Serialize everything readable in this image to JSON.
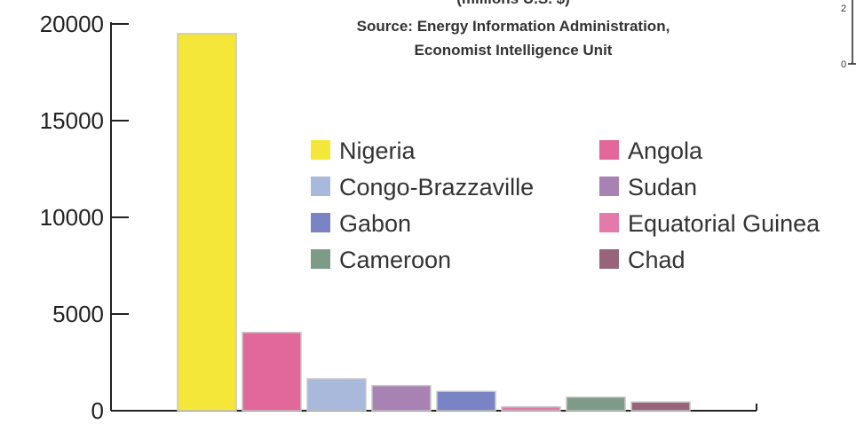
{
  "chart_data": {
    "type": "bar",
    "title_fragment": "(millions U.S. $)",
    "source_lines": [
      "Source: Energy Information Administration,",
      "Economist Intelligence Unit"
    ],
    "categories": [
      "Nigeria",
      "Angola",
      "Congo-Brazzaville",
      "Sudan",
      "Gabon",
      "Equatorial Guinea",
      "Cameroon",
      "Chad"
    ],
    "values": [
      19500,
      4050,
      1650,
      1300,
      1000,
      200,
      700,
      450
    ],
    "colors": [
      "#f5e63a",
      "#e2679a",
      "#a8b9db",
      "#a982b4",
      "#7a83c4",
      "#e37aa9",
      "#7d9b87",
      "#98647a"
    ],
    "ylim": [
      0,
      20000
    ],
    "yticks": [
      0,
      5000,
      10000,
      15000,
      20000
    ],
    "ytick_labels": [
      "0",
      "5000",
      "10000",
      "15000",
      "20000"
    ],
    "xlabel": "",
    "ylabel": "",
    "legend": {
      "placement": "inside-top-right",
      "columns": [
        [
          "Nigeria",
          "Congo-Brazzaville",
          "Gabon",
          "Cameroon"
        ],
        [
          "Angola",
          "Sudan",
          "Equatorial Guinea",
          "Chad"
        ]
      ]
    },
    "corner_labels": [
      "2",
      "0"
    ]
  }
}
